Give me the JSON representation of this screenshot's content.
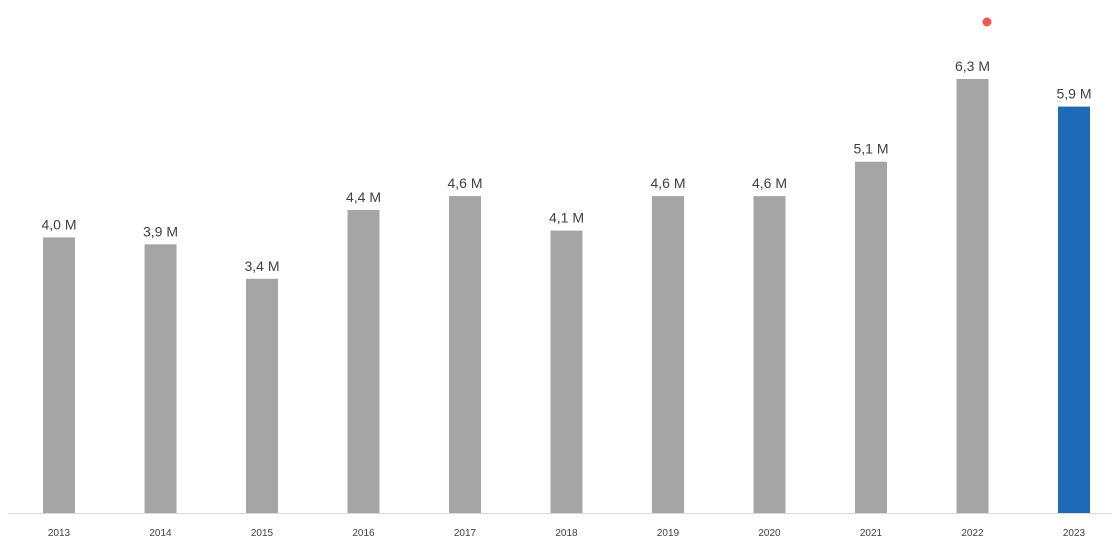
{
  "chart_data": {
    "type": "bar",
    "title": "",
    "xlabel": "",
    "ylabel": "",
    "categories": [
      "2013",
      "2014",
      "2015",
      "2016",
      "2017",
      "2018",
      "2019",
      "2020",
      "2021",
      "2022",
      "2023"
    ],
    "values": [
      4.0,
      3.9,
      3.4,
      4.4,
      4.6,
      4.1,
      4.6,
      4.6,
      5.1,
      6.3,
      5.9
    ],
    "data_labels": [
      "4,0 M",
      "3,9 M",
      "3,4 M",
      "4,4 M",
      "4,6 M",
      "4,1 M",
      "4,6 M",
      "4,6 M",
      "5,1 M",
      "6,3 M",
      "5,9 M"
    ],
    "ylim": [
      0,
      6.3
    ],
    "grid": false,
    "legend": "none",
    "colors": {
      "default_bar": "#a5a5a5",
      "highlight_bar": "#1f6ab6",
      "axis_line": "#d9d9d9",
      "marker_dot": "#e8403a"
    },
    "highlight_category": "2023"
  }
}
